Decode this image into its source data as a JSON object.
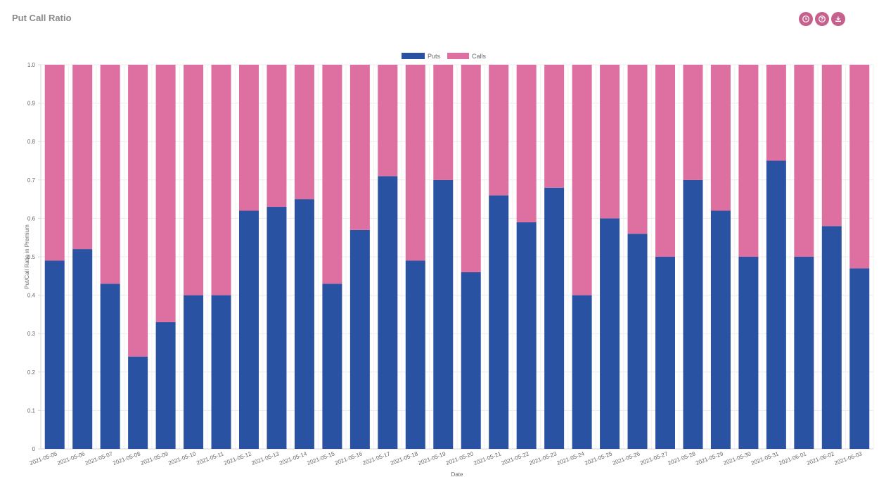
{
  "header": {
    "title": "Put Call Ratio"
  },
  "toolbar": {
    "icons": [
      "clock-icon",
      "help-icon",
      "download-icon"
    ]
  },
  "chart_data": {
    "type": "bar",
    "stacked": true,
    "categories": [
      "2021-05-05",
      "2021-05-06",
      "2021-05-07",
      "2021-05-08",
      "2021-05-09",
      "2021-05-10",
      "2021-05-11",
      "2021-05-12",
      "2021-05-13",
      "2021-05-14",
      "2021-05-15",
      "2021-05-16",
      "2021-05-17",
      "2021-05-18",
      "2021-05-19",
      "2021-05-20",
      "2021-05-21",
      "2021-05-22",
      "2021-05-23",
      "2021-05-24",
      "2021-05-25",
      "2021-05-26",
      "2021-05-27",
      "2021-05-28",
      "2021-05-29",
      "2021-05-30",
      "2021-05-31",
      "2021-06-01",
      "2021-06-02",
      "2021-06-03"
    ],
    "series": [
      {
        "name": "Puts",
        "color": "#2a52a2",
        "values": [
          0.49,
          0.52,
          0.43,
          0.24,
          0.33,
          0.4,
          0.4,
          0.62,
          0.63,
          0.65,
          0.43,
          0.57,
          0.71,
          0.49,
          0.7,
          0.46,
          0.66,
          0.59,
          0.68,
          0.4,
          0.6,
          0.56,
          0.5,
          0.7,
          0.62,
          0.5,
          0.75,
          0.5,
          0.58,
          0.47
        ]
      },
      {
        "name": "Calls",
        "color": "#de6fa1",
        "values": [
          0.51,
          0.48,
          0.57,
          0.76,
          0.67,
          0.6,
          0.6,
          0.38,
          0.37,
          0.35,
          0.57,
          0.43,
          0.29,
          0.51,
          0.3,
          0.54,
          0.34,
          0.41,
          0.32,
          0.6,
          0.4,
          0.44,
          0.5,
          0.3,
          0.38,
          0.5,
          0.25,
          0.5,
          0.42,
          0.53
        ]
      }
    ],
    "xlabel": "Date",
    "ylabel": "Put/Call Ratio in Premium",
    "ylim": [
      0,
      1
    ],
    "yticks": [
      "0",
      "0.1",
      "0.2",
      "0.3",
      "0.4",
      "0.5",
      "0.6",
      "0.7",
      "0.8",
      "0.9",
      "1.0"
    ],
    "grid": true,
    "legend_position": "top-center"
  }
}
